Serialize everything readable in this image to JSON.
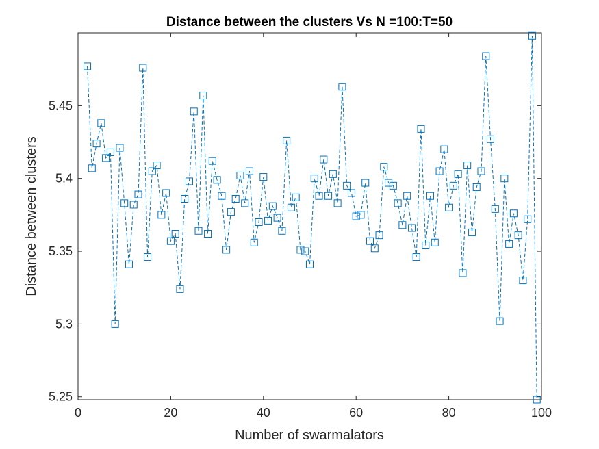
{
  "chart_data": {
    "type": "line",
    "title": "Distance between the clusters Vs N =100:T=50",
    "xlabel": "Number of swarmalators",
    "ylabel": "Distance between clusters",
    "xlim": [
      0,
      100
    ],
    "ylim": [
      5.248,
      5.5
    ],
    "xticks": [
      0,
      20,
      40,
      60,
      80,
      100
    ],
    "xtick_labels": [
      "0",
      "20",
      "40",
      "60",
      "80",
      "100"
    ],
    "yticks": [
      5.25,
      5.3,
      5.35,
      5.4,
      5.45
    ],
    "ytick_labels": [
      "5.25",
      "5.3",
      "5.35",
      "5.4",
      "5.45"
    ],
    "grid": false,
    "line_style": "dashed",
    "marker": "square",
    "color": "#0072BD",
    "series": [
      {
        "x": [
          2,
          3,
          4,
          5,
          6,
          7,
          8,
          9,
          10,
          11,
          12,
          13,
          14,
          15,
          16,
          17,
          18,
          19,
          20,
          21,
          22,
          23,
          24,
          25,
          26,
          27,
          28,
          29,
          30,
          31,
          32,
          33,
          34,
          35,
          36,
          37,
          38,
          39,
          40,
          41,
          42,
          43,
          44,
          45,
          46,
          47,
          48,
          49,
          50,
          51,
          52,
          53,
          54,
          55,
          56,
          57,
          58,
          59,
          60,
          61,
          62,
          63,
          64,
          65,
          66,
          67,
          68,
          69,
          70,
          71,
          72,
          73,
          74,
          75,
          76,
          77,
          78,
          79,
          80,
          81,
          82,
          83,
          84,
          85,
          86,
          87,
          88,
          89,
          90,
          91,
          92,
          93,
          94,
          95,
          96,
          97,
          98,
          99
        ],
        "values": [
          5.477,
          5.407,
          5.424,
          5.438,
          5.414,
          5.418,
          5.3,
          5.421,
          5.383,
          5.341,
          5.382,
          5.389,
          5.476,
          5.346,
          5.405,
          5.409,
          5.375,
          5.39,
          5.357,
          5.362,
          5.324,
          5.386,
          5.398,
          5.446,
          5.364,
          5.457,
          5.362,
          5.412,
          5.399,
          5.388,
          5.351,
          5.377,
          5.386,
          5.402,
          5.383,
          5.405,
          5.356,
          5.37,
          5.401,
          5.371,
          5.381,
          5.373,
          5.364,
          5.426,
          5.38,
          5.387,
          5.351,
          5.35,
          5.341,
          5.4,
          5.388,
          5.413,
          5.388,
          5.403,
          5.383,
          5.463,
          5.395,
          5.39,
          5.374,
          5.375,
          5.397,
          5.357,
          5.352,
          5.361,
          5.408,
          5.397,
          5.395,
          5.383,
          5.368,
          5.388,
          5.366,
          5.346,
          5.434,
          5.354,
          5.388,
          5.356,
          5.405,
          5.42,
          5.38,
          5.395,
          5.403,
          5.335,
          5.409,
          5.363,
          5.394,
          5.405,
          5.484,
          5.427,
          5.379,
          5.302,
          5.4,
          5.355,
          5.376,
          5.361,
          5.33,
          5.372,
          5.498,
          5.248
        ]
      }
    ]
  }
}
